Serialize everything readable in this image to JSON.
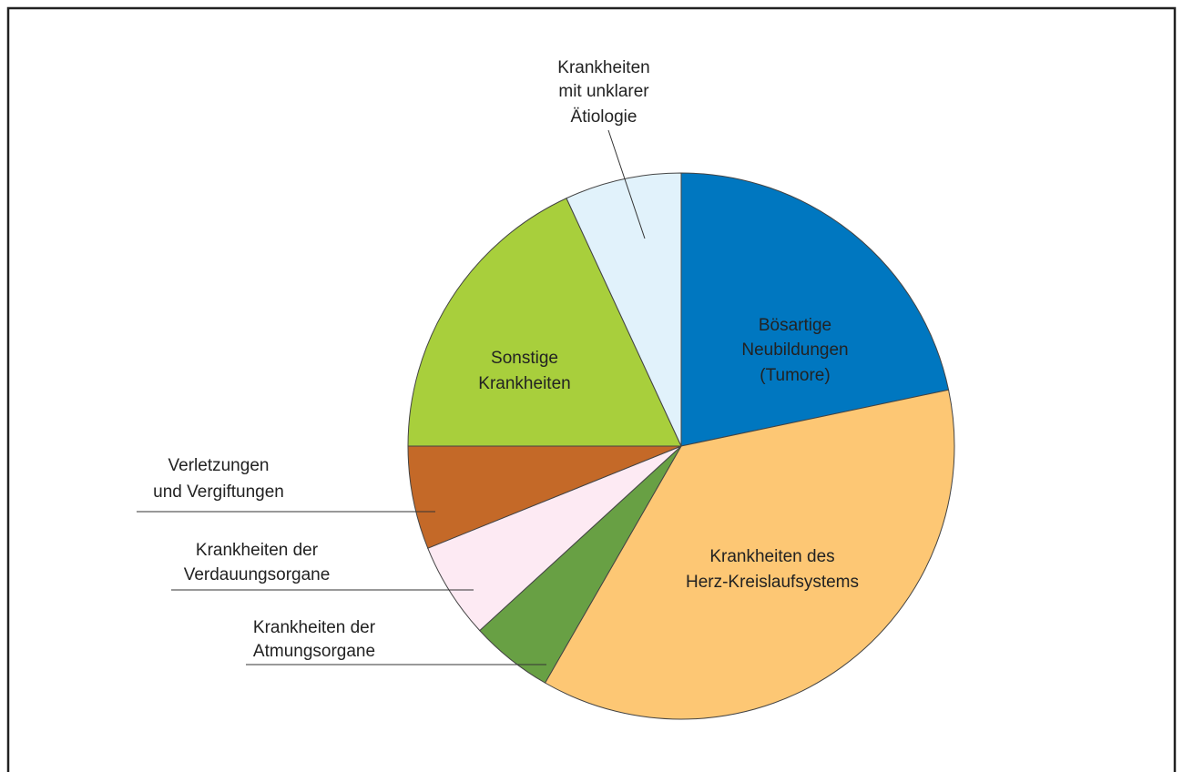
{
  "chart_data": {
    "type": "pie",
    "categories": [
      [
        "Bösartige",
        "Neubildungen",
        "(Tumore)"
      ],
      [
        "Krankheiten des",
        "Herz-Kreislaufsystems"
      ],
      [
        "Krankheiten der",
        "Atmungsorgane"
      ],
      [
        "Krankheiten der",
        "Verdauungsorgane"
      ],
      [
        "Verletzungen",
        "und Vergiftungen"
      ],
      [
        "Sonstige",
        "Krankheiten"
      ],
      [
        "Krankheiten",
        "mit unklarer",
        "Ätiologie"
      ]
    ],
    "values": [
      21.7,
      36.6,
      4.9,
      5.7,
      6.1,
      18.1,
      6.9
    ],
    "colors": [
      "#0077c0",
      "#fdc774",
      "#68a044",
      "#fdeaf3",
      "#c46928",
      "#a8cf3c",
      "#e1f2fb"
    ]
  }
}
